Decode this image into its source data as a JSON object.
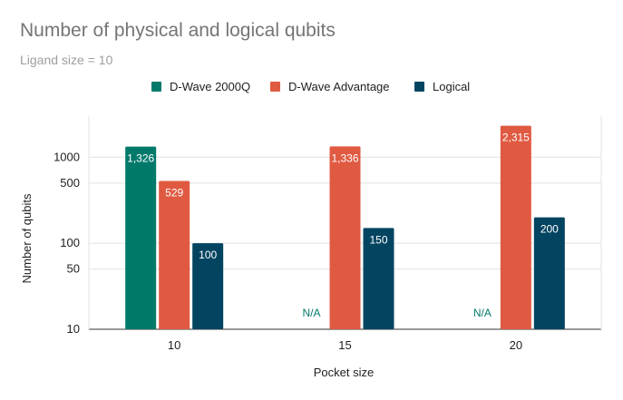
{
  "chart_data": {
    "type": "bar",
    "title": "Number of physical and logical qubits",
    "subtitle": "Ligand size = 10",
    "xlabel": "Pocket size",
    "ylabel": "Number of qubits",
    "yscale": "log",
    "ylim": [
      10,
      3000
    ],
    "yticks": [
      10,
      50,
      100,
      500,
      1000
    ],
    "categories": [
      "10",
      "15",
      "20"
    ],
    "legend_position": "top",
    "grid": true,
    "series": [
      {
        "name": "D-Wave 2000Q",
        "color": "#00796b",
        "values": [
          1326,
          null,
          null
        ],
        "labels": [
          "1,326",
          "N/A",
          "N/A"
        ]
      },
      {
        "name": "D-Wave Advantage",
        "color": "#e05a42",
        "values": [
          529,
          1336,
          2315
        ],
        "labels": [
          "529",
          "1,336",
          "2,315"
        ]
      },
      {
        "name": "Logical",
        "color": "#034561",
        "values": [
          100,
          150,
          200
        ],
        "labels": [
          "100",
          "150",
          "200"
        ]
      }
    ]
  }
}
